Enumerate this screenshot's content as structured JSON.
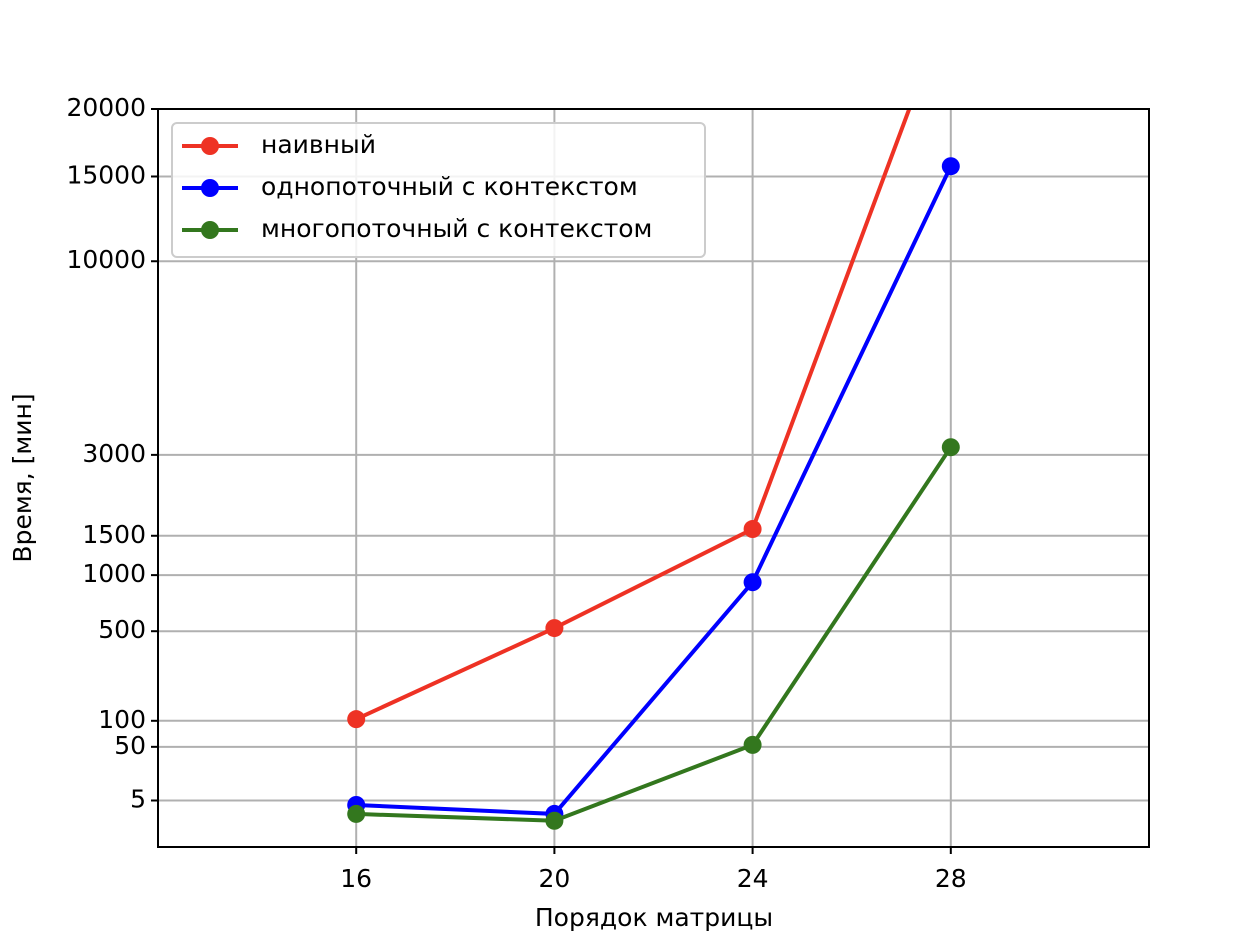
{
  "chart_data": {
    "type": "line",
    "x_label": "Порядок матрицы",
    "y_label": "Время, [мин]",
    "x": [
      16,
      20,
      24,
      28
    ],
    "series": [
      {
        "name": "наивный",
        "color": "#ee3224",
        "values": [
          104,
          522,
          1600,
          30500
        ]
      },
      {
        "name": "однопоточный с контекстом",
        "color": "#0000ff",
        "values": [
          3.7,
          1.8,
          924,
          15700
        ]
      },
      {
        "name": "многопоточный с контекстом",
        "color": "#33771e",
        "values": [
          1.8,
          0.9,
          53,
          3180
        ]
      }
    ],
    "xlim": [
      12,
      32
    ],
    "xticks": [
      16,
      20,
      24,
      28
    ],
    "ylim": [
      0,
      20000
    ],
    "yticks": [
      5,
      50,
      100,
      500,
      1000,
      1500,
      3000,
      10000,
      15000,
      20000
    ],
    "yscale": "cbrt",
    "grid": true,
    "legend": "upper left"
  }
}
